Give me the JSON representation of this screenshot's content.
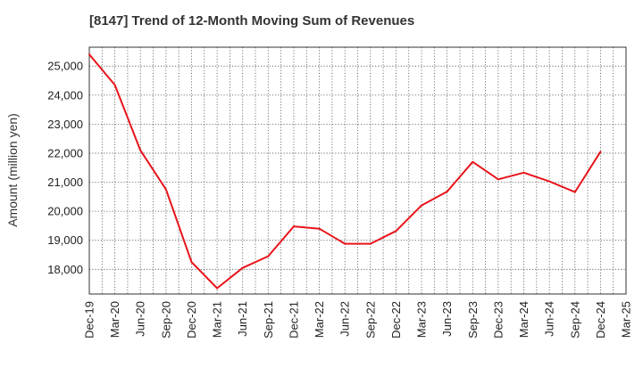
{
  "chart_data": {
    "type": "line",
    "title": "[8147]  Trend of 12-Month Moving Sum of Revenues",
    "ylabel": "Amount (million yen)",
    "xlabel": "",
    "ylim": [
      17150,
      25650
    ],
    "yticks": [
      18000,
      19000,
      20000,
      21000,
      22000,
      23000,
      24000,
      25000
    ],
    "ytick_labels": [
      "18,000",
      "19,000",
      "20,000",
      "21,000",
      "22,000",
      "23,000",
      "24,000",
      "25,000"
    ],
    "xtick_labels": [
      "Dec-19",
      "Mar-20",
      "Jun-20",
      "Sep-20",
      "Dec-20",
      "Mar-21",
      "Jun-21",
      "Sep-21",
      "Dec-21",
      "Mar-22",
      "Jun-22",
      "Sep-22",
      "Dec-22",
      "Mar-23",
      "Jun-23",
      "Sep-23",
      "Dec-23",
      "Mar-24",
      "Jun-24",
      "Sep-24",
      "Dec-24",
      "Mar-25"
    ],
    "grid": true,
    "grid_style": "dotted",
    "series": [
      {
        "color": "#e8141b",
        "x": [
          "Dec-19",
          "Mar-20",
          "Jun-20",
          "Sep-20",
          "Dec-20",
          "Mar-21",
          "Jun-21",
          "Sep-21",
          "Dec-21",
          "Mar-22",
          "Jun-22",
          "Sep-22",
          "Dec-22",
          "Mar-23",
          "Jun-23",
          "Sep-23",
          "Dec-23",
          "Mar-24",
          "Jun-24",
          "Sep-24",
          "Dec-24"
        ],
        "values": [
          25400,
          24350,
          22100,
          20750,
          18250,
          17350,
          18050,
          18450,
          19480,
          19400,
          18880,
          18880,
          19320,
          20200,
          20680,
          21700,
          21100,
          21330,
          21030,
          20660,
          22050
        ]
      }
    ]
  }
}
